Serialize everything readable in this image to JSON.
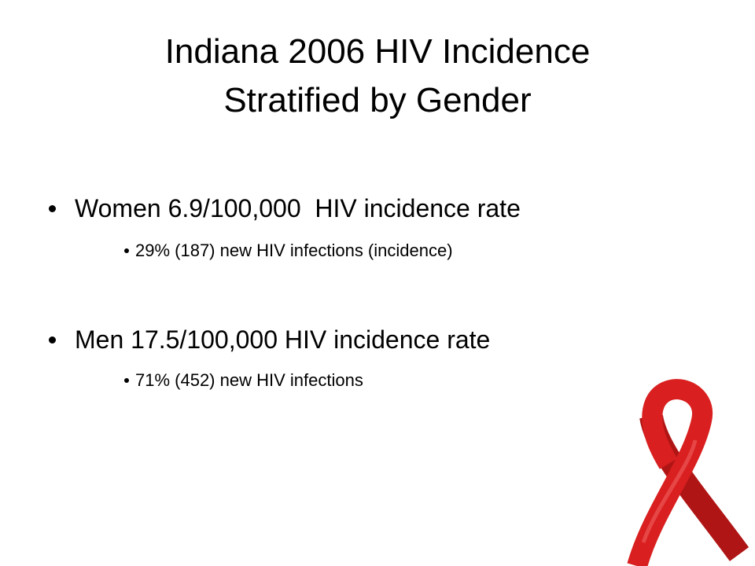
{
  "title": {
    "lines": [
      "Indiana 2006 HIV Incidence",
      "Stratified by Gender"
    ]
  },
  "bullets": [
    {
      "text": "Women 6.9/100,000  HIV incidence rate",
      "sub": [
        "29% (187) new HIV infections (incidence)"
      ]
    },
    {
      "text": "Men 17.5/100,000 HIV incidence rate",
      "sub": [
        "71% (452) new HIV infections"
      ]
    }
  ]
}
